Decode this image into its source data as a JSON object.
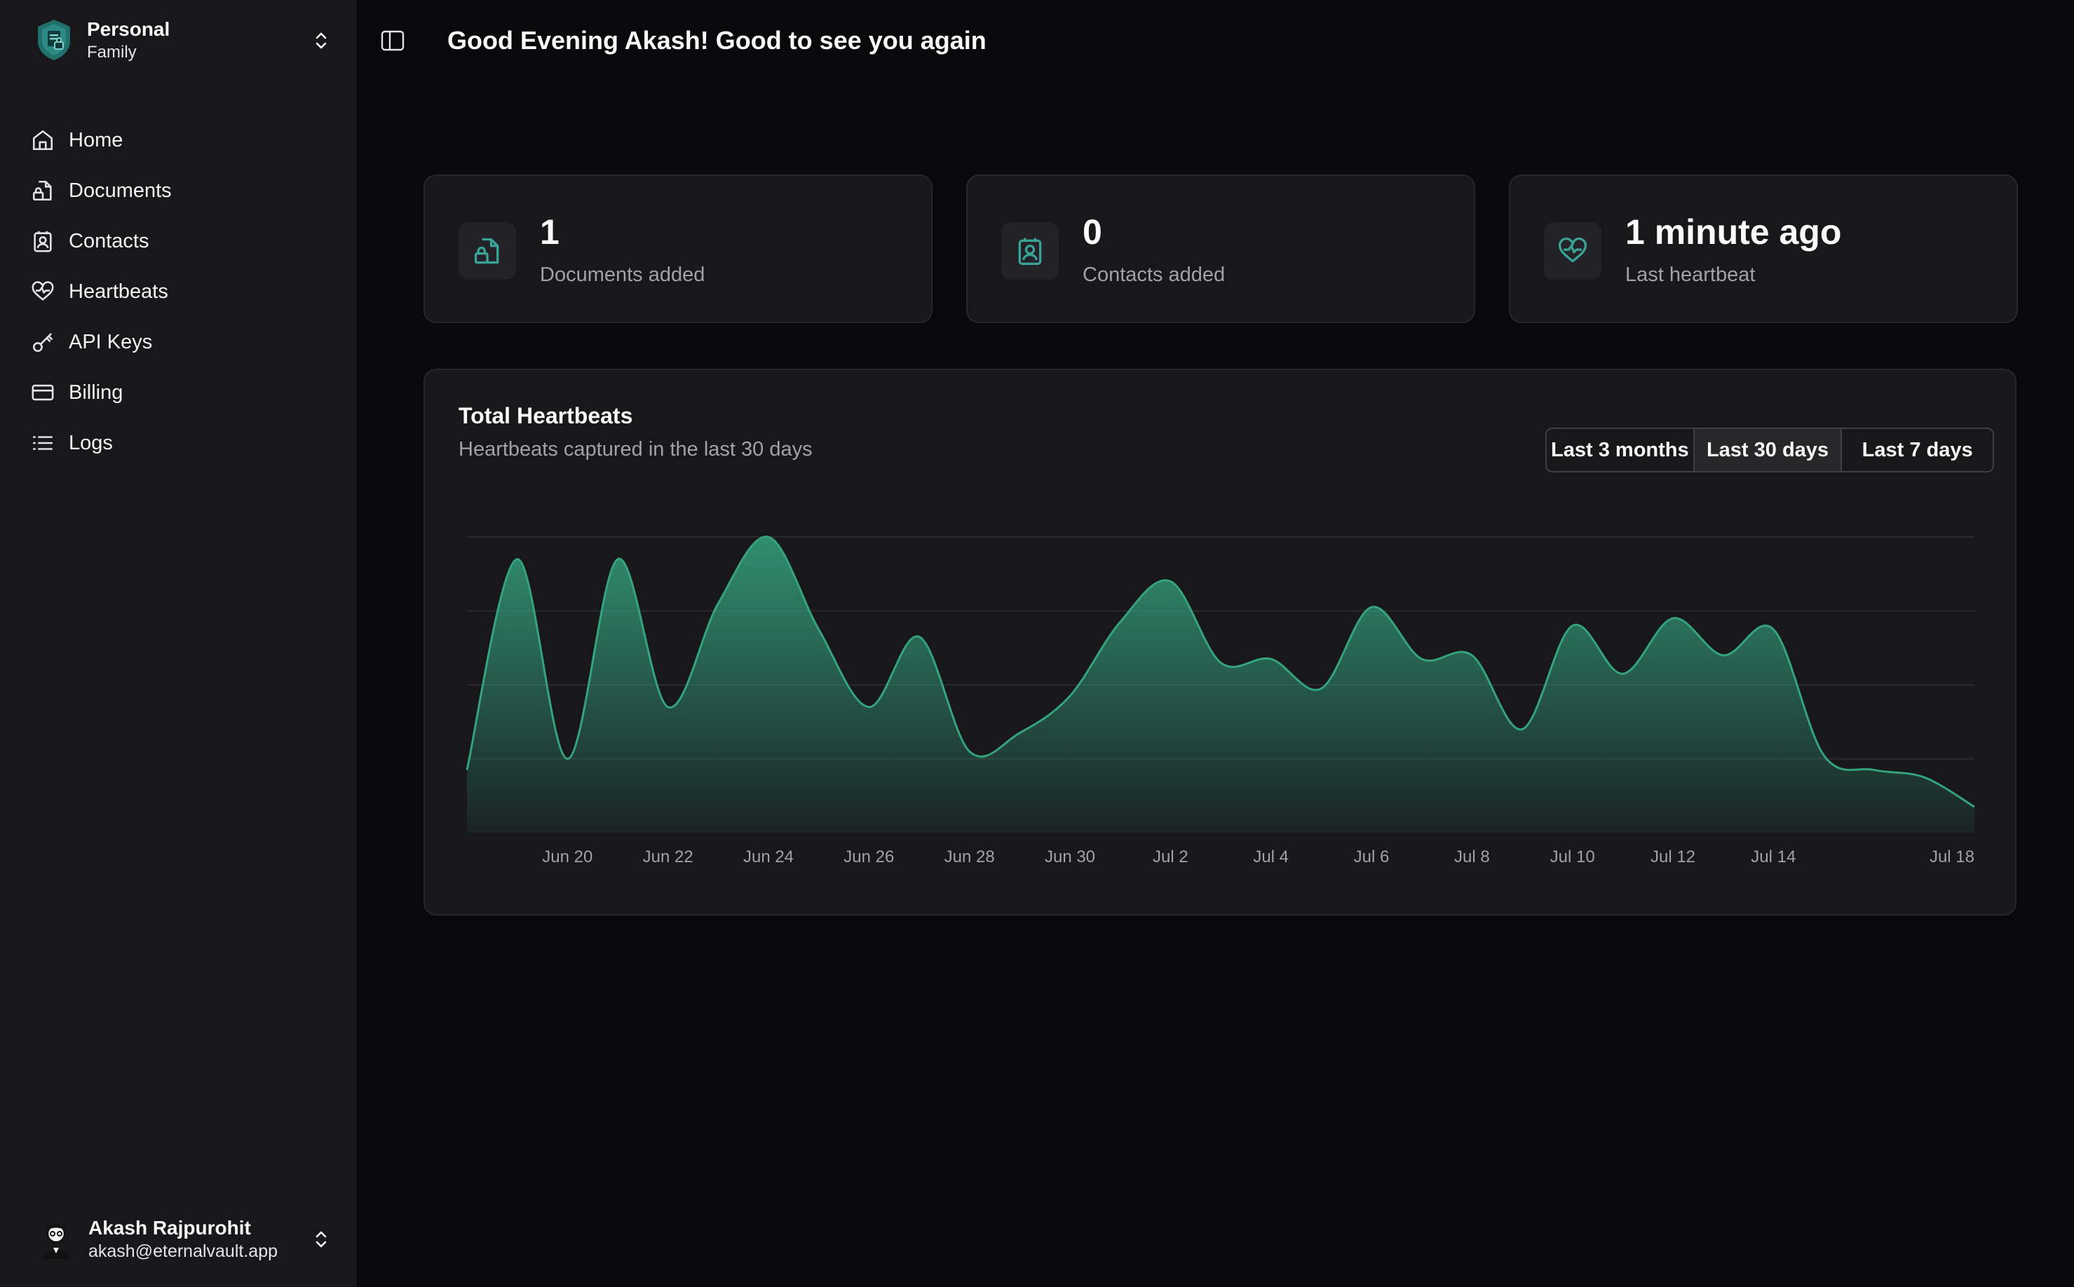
{
  "workspace": {
    "name": "Personal",
    "subtitle": "Family"
  },
  "nav": {
    "items": [
      {
        "label": "Home",
        "icon": "home-icon"
      },
      {
        "label": "Documents",
        "icon": "document-lock-icon"
      },
      {
        "label": "Contacts",
        "icon": "contact-icon"
      },
      {
        "label": "Heartbeats",
        "icon": "heart-pulse-icon"
      },
      {
        "label": "API Keys",
        "icon": "key-icon"
      },
      {
        "label": "Billing",
        "icon": "credit-card-icon"
      },
      {
        "label": "Logs",
        "icon": "list-icon"
      }
    ]
  },
  "user": {
    "name": "Akash Rajpurohit",
    "email": "akash@eternalvault.app"
  },
  "header": {
    "greeting": "Good Evening Akash! Good to see you again"
  },
  "stats": [
    {
      "value": "1",
      "label": "Documents added",
      "icon": "document-lock-icon"
    },
    {
      "value": "0",
      "label": "Contacts added",
      "icon": "contact-icon"
    },
    {
      "value": "1 minute ago",
      "label": "Last heartbeat",
      "icon": "heart-pulse-icon"
    }
  ],
  "chart_card": {
    "title": "Total Heartbeats",
    "subtitle": "Heartbeats captured in the last 30 days",
    "ranges": [
      "Last 3 months",
      "Last 30 days",
      "Last 7 days"
    ],
    "active_range": "Last 30 days"
  },
  "colors": {
    "accent": "#34a37e",
    "background": "#09090b",
    "sidebar": "#18181b",
    "card": "#18181b",
    "muted_text": "#a1a1aa"
  },
  "chart_data": {
    "type": "area",
    "x": [
      "Jun 18",
      "Jun 19",
      "Jun 20",
      "Jun 21",
      "Jun 22",
      "Jun 23",
      "Jun 24",
      "Jun 25",
      "Jun 26",
      "Jun 27",
      "Jun 28",
      "Jun 29",
      "Jun 30",
      "Jul 1",
      "Jul 2",
      "Jul 3",
      "Jul 4",
      "Jul 5",
      "Jul 6",
      "Jul 7",
      "Jul 8",
      "Jul 9",
      "Jul 10",
      "Jul 11",
      "Jul 12",
      "Jul 13",
      "Jul 14",
      "Jul 15",
      "Jul 16",
      "Jul 17",
      "Jul 18"
    ],
    "tick_labels": [
      "Jun 20",
      "Jun 22",
      "Jun 24",
      "Jun 26",
      "Jun 28",
      "Jun 30",
      "Jul 2",
      "Jul 4",
      "Jul 6",
      "Jul 8",
      "Jul 10",
      "Jul 12",
      "Jul 14",
      "Jul 18"
    ],
    "series": [
      {
        "values": [
          170,
          740,
          200,
          740,
          340,
          620,
          800,
          550,
          340,
          530,
          220,
          270,
          370,
          570,
          680,
          460,
          470,
          390,
          610,
          470,
          480,
          280,
          560,
          430,
          580,
          480,
          550,
          210,
          170,
          150,
          70
        ]
      }
    ],
    "ylim": [
      0,
      800
    ],
    "grid": true,
    "xlabel": "",
    "ylabel": ""
  }
}
